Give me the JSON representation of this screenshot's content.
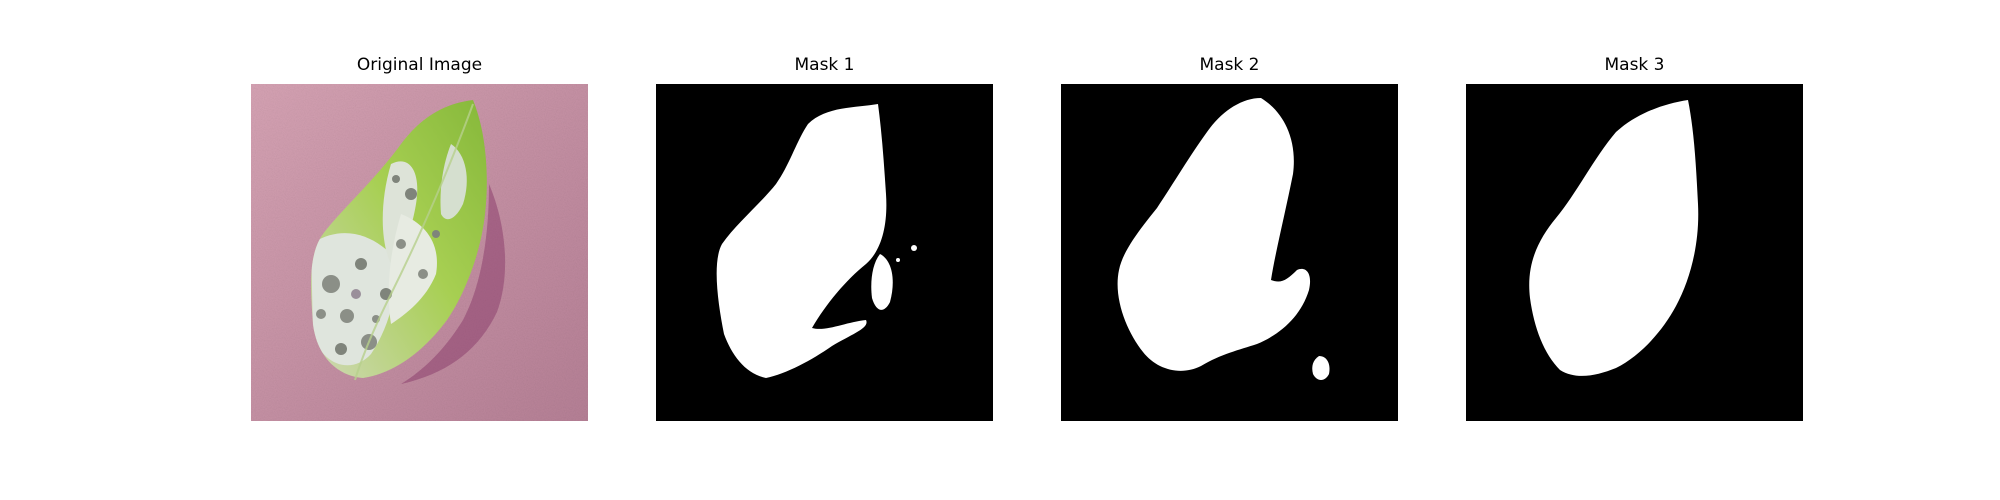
{
  "figure": {
    "panels": [
      {
        "title": "Original Image",
        "kind": "photo",
        "subject": "leaf-photo"
      },
      {
        "title": "Mask 1",
        "kind": "mask",
        "subject": "leaf-mask"
      },
      {
        "title": "Mask 2",
        "kind": "mask",
        "subject": "leaf-mask"
      },
      {
        "title": "Mask 3",
        "kind": "mask",
        "subject": "leaf-mask"
      }
    ]
  },
  "colors": {
    "background": "#ffffff",
    "mask_background": "#000000",
    "mask_foreground": "#ffffff",
    "photo_background": "#d7a9b9",
    "leaf_green": "#9bc73d",
    "leaf_dark_green": "#6f9b2e",
    "leaf_pale": "#dfe5dd",
    "leaf_spots": "#8b8f87",
    "shadow": "#8c3f6d"
  }
}
